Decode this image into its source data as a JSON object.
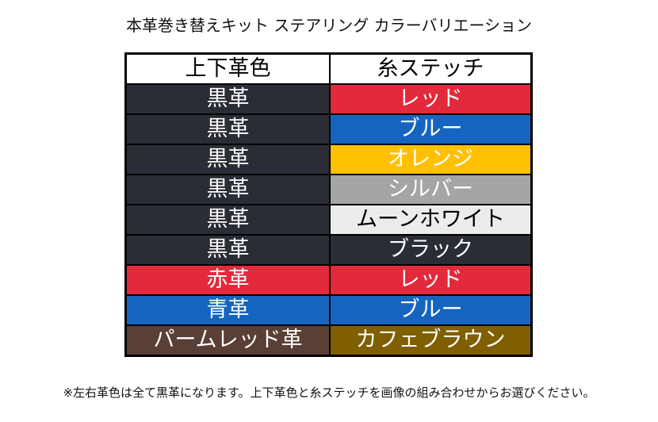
{
  "title": "本革巻き替えキット ステアリング カラーバリエーション",
  "table": {
    "headers": [
      "上下革色",
      "糸ステッチ"
    ],
    "rows": [
      {
        "leather": "黒革",
        "leather_color": "#2b2d36",
        "stitch": "レッド",
        "stitch_color": "#e32a3c",
        "stitch_text_color": "#ffffff"
      },
      {
        "leather": "黒革",
        "leather_color": "#2b2d36",
        "stitch": "ブルー",
        "stitch_color": "#1565c0",
        "stitch_text_color": "#ffffff"
      },
      {
        "leather": "黒革",
        "leather_color": "#2b2d36",
        "stitch": "オレンジ",
        "stitch_color": "#ffc000",
        "stitch_text_color": "#ffffff"
      },
      {
        "leather": "黒革",
        "leather_color": "#2b2d36",
        "stitch": "シルバー",
        "stitch_color": "#a5a5a5",
        "stitch_text_color": "#ffffff"
      },
      {
        "leather": "黒革",
        "leather_color": "#2b2d36",
        "stitch": "ムーンホワイト",
        "stitch_color": "#ececec",
        "stitch_text_color": "#000000"
      },
      {
        "leather": "黒革",
        "leather_color": "#2b2d36",
        "stitch": "ブラック",
        "stitch_color": "#2b2d36",
        "stitch_text_color": "#ffffff"
      },
      {
        "leather": "赤革",
        "leather_color": "#e32a3c",
        "stitch": "レッド",
        "stitch_color": "#e32a3c",
        "stitch_text_color": "#ffffff"
      },
      {
        "leather": "青革",
        "leather_color": "#1565c0",
        "stitch": "ブルー",
        "stitch_color": "#1565c0",
        "stitch_text_color": "#ffffff"
      },
      {
        "leather": "パームレッド革",
        "leather_color": "#5a3f36",
        "stitch": "カフェブラウン",
        "stitch_color": "#7f5f00",
        "stitch_text_color": "#ffffff"
      }
    ]
  },
  "note": "※左右革色は全て黒革になります。上下革色と糸ステッチを画像の組み合わせからお選びください。"
}
